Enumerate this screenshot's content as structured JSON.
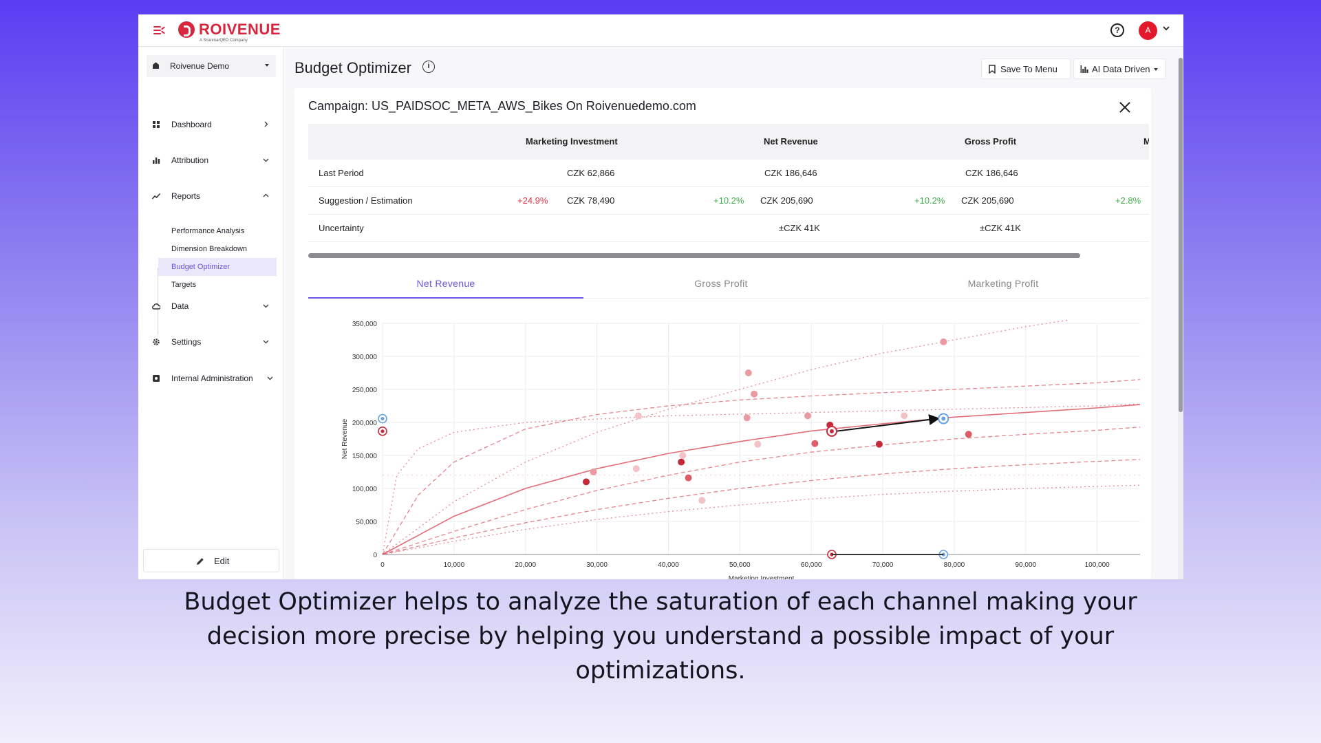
{
  "brand": {
    "name": "ROIVENUE",
    "tagline": "A ScanmarQED Company",
    "accent": "#d7263d"
  },
  "topbar": {
    "help_icon": "help-circle-icon",
    "avatar_initial": "A"
  },
  "sidebar": {
    "workspace": "Roivenue Demo",
    "items": [
      {
        "label": "Dashboard",
        "icon": "grid-icon",
        "chevron": "right"
      },
      {
        "label": "Attribution",
        "icon": "bar-chart-icon",
        "chevron": "down"
      },
      {
        "label": "Reports",
        "icon": "trend-icon",
        "chevron": "up"
      },
      {
        "label": "Data",
        "icon": "cloud-icon",
        "chevron": "down"
      },
      {
        "label": "Settings",
        "icon": "gear-icon",
        "chevron": "down"
      },
      {
        "label": "Internal Administration",
        "icon": "admin-icon",
        "chevron": "down"
      }
    ],
    "report_subitems": [
      "Performance Analysis",
      "Dimension Breakdown",
      "Budget Optimizer",
      "Targets"
    ],
    "active_subitem": "Budget Optimizer",
    "edit_label": "Edit"
  },
  "page": {
    "title": "Budget Optimizer",
    "save_button": "Save To Menu",
    "mode_button": "AI Data Driven"
  },
  "campaign": {
    "title": "Campaign: US_PAIDSOC_META_AWS_Bikes On Roivenuedemo.com",
    "columns": [
      "Marketing Investment",
      "Net Revenue",
      "Gross Profit",
      "M"
    ],
    "rows": [
      {
        "label": "Last Period",
        "mi": "CZK 62,866",
        "nr": "CZK 186,646",
        "gp": "CZK 186,646"
      },
      {
        "label": "Suggestion / Estimation",
        "mi_change": "+24.9%",
        "mi": "CZK 78,490",
        "nr_change": "+10.2%",
        "nr": "CZK 205,690",
        "gp_change": "+10.2%",
        "gp": "CZK 205,690",
        "m_change": "+2.8%"
      },
      {
        "label": "Uncertainty",
        "nr": "±CZK 41K",
        "gp": "±CZK 41K"
      }
    ]
  },
  "tabs": [
    "Net Revenue",
    "Gross Profit",
    "Marketing Profit"
  ],
  "active_tab": "Net Revenue",
  "chart_data": {
    "type": "scatter",
    "title": "",
    "xlabel": "Marketing Investment",
    "ylabel": "Net Revenue",
    "xlim": [
      0,
      106000
    ],
    "ylim": [
      0,
      350000
    ],
    "xticks": [
      0,
      10000,
      20000,
      30000,
      40000,
      50000,
      60000,
      70000,
      80000,
      90000,
      100000
    ],
    "yticks": [
      0,
      50000,
      100000,
      150000,
      200000,
      250000,
      300000,
      350000
    ],
    "xtick_labels": [
      "0",
      "10,000",
      "20,000",
      "30,000",
      "40,000",
      "50,000",
      "60,000",
      "70,000",
      "80,000",
      "90,000",
      "100,000"
    ],
    "ytick_labels": [
      "0",
      "50,000",
      "100,000",
      "150,000",
      "200,000",
      "250,000",
      "300,000",
      "350,000"
    ],
    "grid": true,
    "curve_color": "#e06470",
    "curves": [
      {
        "style": "solid",
        "x": [
          0,
          10000,
          20000,
          30000,
          40000,
          50000,
          60000,
          70000,
          80000,
          90000,
          100000,
          106000
        ],
        "y": [
          0,
          58000,
          100000,
          130000,
          153000,
          171000,
          187000,
          198000,
          208000,
          215000,
          222000,
          227000
        ]
      },
      {
        "style": "dashed",
        "x": [
          0,
          5000,
          10000,
          20000,
          30000,
          40000,
          50000,
          60000,
          70000,
          80000,
          90000,
          100000,
          106000
        ],
        "y": [
          0,
          90000,
          140000,
          190000,
          212000,
          225000,
          234000,
          240000,
          245000,
          250000,
          255000,
          260000,
          265000
        ]
      },
      {
        "style": "dotted",
        "x": [
          0,
          2000,
          5000,
          10000,
          20000,
          40000,
          60000,
          80000,
          100000,
          106000
        ],
        "y": [
          0,
          120000,
          160000,
          185000,
          200000,
          210000,
          215000,
          220000,
          225000,
          228000
        ]
      },
      {
        "style": "dashed",
        "x": [
          0,
          10000,
          20000,
          30000,
          40000,
          50000,
          60000,
          70000,
          80000,
          90000,
          100000,
          106000
        ],
        "y": [
          0,
          35000,
          68000,
          97000,
          120000,
          140000,
          155000,
          166000,
          175000,
          182000,
          188000,
          193000
        ]
      },
      {
        "style": "dashed",
        "x": [
          0,
          10000,
          20000,
          30000,
          40000,
          50000,
          60000,
          70000,
          80000,
          90000,
          100000,
          106000
        ],
        "y": [
          0,
          25000,
          48000,
          68000,
          85000,
          100000,
          112000,
          122000,
          130000,
          136000,
          141000,
          144000
        ]
      },
      {
        "style": "dotted",
        "x": [
          0,
          10000,
          20000,
          30000,
          40000,
          50000,
          60000,
          70000,
          80000,
          90000,
          100000,
          106000
        ],
        "y": [
          0,
          20000,
          38000,
          53000,
          65000,
          75000,
          84000,
          91000,
          96000,
          100000,
          103000,
          105000
        ]
      },
      {
        "style": "dotted",
        "x": [
          0,
          10000,
          20000,
          30000,
          40000,
          50000,
          60000,
          70000,
          80000,
          90000,
          96000
        ],
        "y": [
          0,
          80000,
          140000,
          185000,
          220000,
          250000,
          280000,
          305000,
          325000,
          345000,
          355000
        ]
      },
      {
        "style": "dotted-light",
        "x": [
          0,
          106000
        ],
        "y": [
          120000,
          120000
        ]
      }
    ],
    "points": [
      {
        "x": 28500,
        "y": 110000,
        "shade": "dark"
      },
      {
        "x": 29500,
        "y": 125000,
        "shade": "light"
      },
      {
        "x": 35500,
        "y": 130000,
        "shade": "faint"
      },
      {
        "x": 35800,
        "y": 210000,
        "shade": "faint"
      },
      {
        "x": 41800,
        "y": 140000,
        "shade": "dark"
      },
      {
        "x": 42000,
        "y": 150000,
        "shade": "faint"
      },
      {
        "x": 42800,
        "y": 116000,
        "shade": "medium"
      },
      {
        "x": 44700,
        "y": 82000,
        "shade": "faint"
      },
      {
        "x": 51000,
        "y": 207000,
        "shade": "light"
      },
      {
        "x": 51200,
        "y": 275000,
        "shade": "light"
      },
      {
        "x": 52000,
        "y": 243000,
        "shade": "light"
      },
      {
        "x": 52500,
        "y": 167000,
        "shade": "faint"
      },
      {
        "x": 59500,
        "y": 210000,
        "shade": "light"
      },
      {
        "x": 60500,
        "y": 168000,
        "shade": "medium"
      },
      {
        "x": 62600,
        "y": 196000,
        "shade": "dark"
      },
      {
        "x": 69500,
        "y": 167000,
        "shade": "dark"
      },
      {
        "x": 73000,
        "y": 210000,
        "shade": "faint"
      },
      {
        "x": 78500,
        "y": 322000,
        "shade": "light"
      },
      {
        "x": 82000,
        "y": 182000,
        "shade": "medium"
      }
    ],
    "last_period": {
      "x": 62866,
      "y": 186646
    },
    "suggestion": {
      "x": 78490,
      "y": 205690
    },
    "axis_markers": [
      {
        "x": 62866,
        "y": 0,
        "kind": "last-period"
      },
      {
        "x": 78490,
        "y": 0,
        "kind": "suggestion"
      },
      {
        "x": 0,
        "y": 186646,
        "kind": "last-period"
      },
      {
        "x": 0,
        "y": 205690,
        "kind": "suggestion"
      }
    ]
  },
  "caption": "Budget Optimizer helps to analyze the saturation of each channel making your decision more precise by helping you understand a possible impact of your optimizations."
}
